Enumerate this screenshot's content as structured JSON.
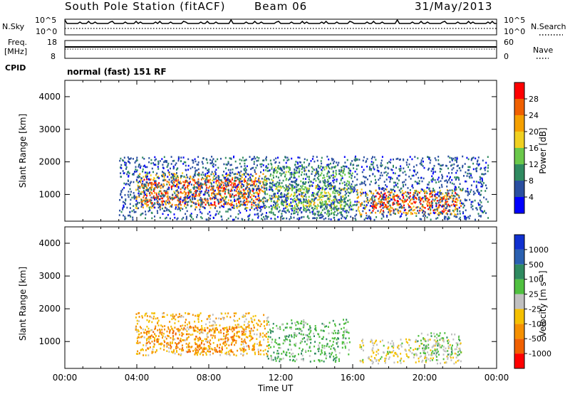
{
  "header": {
    "station": "South Pole Station (fitACF)",
    "beam": "Beam 06",
    "date": "31/May/2013"
  },
  "sky_panel": {
    "left_label": "N.Sky",
    "right_label": "N.Search",
    "left_ticks": [
      "10^5",
      "10^0"
    ],
    "right_ticks": [
      "10^5",
      "10^0"
    ]
  },
  "freq_panel": {
    "left_label_1": "Freq.",
    "left_label_2": "[MHz]",
    "right_label": "Nave",
    "left_ticks": [
      "18",
      "8"
    ],
    "right_ticks": [
      "60",
      "0"
    ]
  },
  "cpid": {
    "label": "CPID",
    "value": "normal (fast) 151 RF"
  },
  "x_axis": {
    "label": "Time UT",
    "ticks": [
      "00:00",
      "04:00",
      "08:00",
      "12:00",
      "16:00",
      "20:00",
      "00:00"
    ]
  },
  "colors": {
    "power": [
      "#0000ff",
      "#2a4fa0",
      "#2f8a60",
      "#6ac84a",
      "#f0d020",
      "#f5a000",
      "#f06000",
      "#ff0000"
    ],
    "velocity": [
      "#ff0000",
      "#f06000",
      "#f59000",
      "#f5c000",
      "#c0c0c0",
      "#50c040",
      "#2f8a60",
      "#2a60b0",
      "#1030d0"
    ]
  },
  "chart_data": [
    {
      "type": "heatmap",
      "title": "",
      "xlabel": "Time UT",
      "ylabel": "Slant Range [km]",
      "xlim": [
        0,
        24
      ],
      "ylim": [
        180,
        4500
      ],
      "yticks": [
        "1000",
        "2000",
        "3000",
        "4000"
      ],
      "colorbar": {
        "label": "Power [dB]",
        "ticks": [
          "4",
          "8",
          "12",
          "16",
          "20",
          "24",
          "28"
        ],
        "range": [
          0,
          30
        ]
      },
      "regions": [
        {
          "t0": 3.9,
          "t1": 11.2,
          "r0": 600,
          "r1": 1700,
          "level": 20
        },
        {
          "t0": 4.2,
          "t1": 10.8,
          "r0": 700,
          "r1": 1500,
          "level": 26
        },
        {
          "t0": 11.0,
          "t1": 16.0,
          "r0": 400,
          "r1": 1900,
          "level": 12
        },
        {
          "t0": 11.5,
          "t1": 15.5,
          "r0": 600,
          "r1": 1300,
          "level": 16
        },
        {
          "t0": 16.2,
          "t1": 22.0,
          "r0": 400,
          "r1": 1200,
          "level": 20
        },
        {
          "t0": 17.0,
          "t1": 21.8,
          "r0": 500,
          "r1": 1100,
          "level": 27
        },
        {
          "t0": 3.0,
          "t1": 23.5,
          "r0": 250,
          "r1": 2200,
          "level": 6
        }
      ]
    },
    {
      "type": "heatmap",
      "title": "",
      "xlabel": "Time UT",
      "ylabel": "Slant Range [km]",
      "xlim": [
        0,
        24
      ],
      "ylim": [
        180,
        4500
      ],
      "yticks": [
        "1000",
        "2000",
        "3000",
        "4000"
      ],
      "colorbar": {
        "label": "Velocity [m s⁻¹]",
        "ticks": [
          "1000",
          "500",
          "100",
          "25",
          "-25",
          "-100",
          "-500",
          "-1000"
        ],
        "range": [
          -1200,
          1200
        ]
      },
      "regions": [
        {
          "t0": 3.9,
          "t1": 11.3,
          "r0": 600,
          "r1": 1900,
          "level": -300
        },
        {
          "t0": 4.5,
          "t1": 10.5,
          "r0": 700,
          "r1": 1500,
          "level": -600
        },
        {
          "t0": 11.2,
          "t1": 15.8,
          "r0": 400,
          "r1": 1700,
          "level": 300
        },
        {
          "t0": 16.3,
          "t1": 22.0,
          "r0": 350,
          "r1": 1100,
          "level": -80
        },
        {
          "t0": 19.5,
          "t1": 22.0,
          "r0": 600,
          "r1": 1300,
          "level": 200
        }
      ]
    }
  ]
}
